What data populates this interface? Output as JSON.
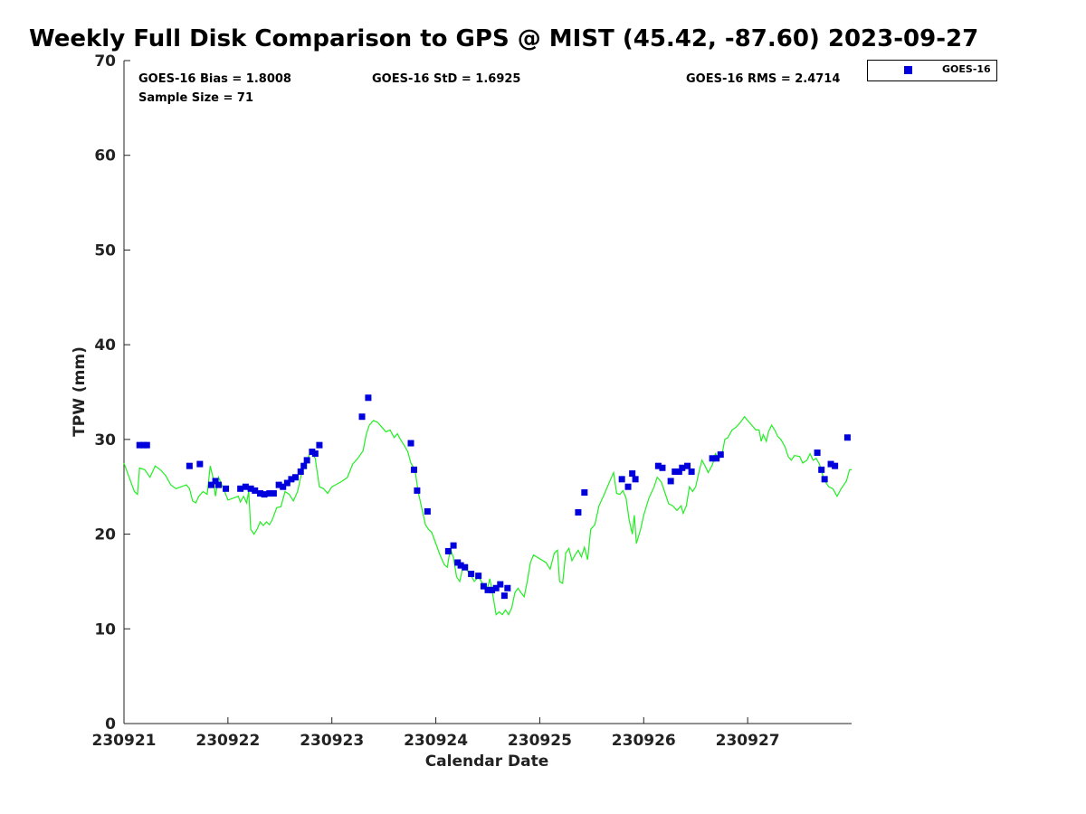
{
  "chart_data": {
    "type": "scatter",
    "title": "Weekly Full Disk Comparison to GPS @ MIST (45.42, -87.60) 2023-09-27",
    "xlabel": "Calendar Date",
    "ylabel": "TPW (mm)",
    "xlim": [
      0,
      7
    ],
    "ylim": [
      0,
      70
    ],
    "x_ticks": [
      0,
      1,
      2,
      3,
      4,
      5,
      6
    ],
    "x_tick_labels": [
      "230921",
      "230922",
      "230923",
      "230924",
      "230925",
      "230926",
      "230927"
    ],
    "y_ticks": [
      0,
      10,
      20,
      30,
      40,
      50,
      60,
      70
    ],
    "y_tick_labels": [
      "0",
      "10",
      "20",
      "30",
      "40",
      "50",
      "60",
      "70"
    ],
    "grid": false,
    "legend_position": "top-right outside plot",
    "stats": {
      "bias": "GOES-16 Bias = 1.8008",
      "std": "GOES-16 StD = 1.6925",
      "rms": "GOES-16 RMS = 2.4714",
      "sample": "Sample Size = 71"
    },
    "series": [
      {
        "name": "GOES-16",
        "kind": "scatter",
        "color": "#0000dd",
        "points": [
          [
            0.15,
            29.4
          ],
          [
            0.19,
            29.4
          ],
          [
            0.22,
            29.4
          ],
          [
            0.63,
            27.2
          ],
          [
            0.73,
            27.4
          ],
          [
            0.84,
            25.2
          ],
          [
            0.88,
            25.6
          ],
          [
            0.91,
            25.2
          ],
          [
            0.98,
            24.8
          ],
          [
            1.12,
            24.8
          ],
          [
            1.17,
            25.0
          ],
          [
            1.22,
            24.8
          ],
          [
            1.26,
            24.6
          ],
          [
            1.31,
            24.3
          ],
          [
            1.35,
            24.2
          ],
          [
            1.4,
            24.3
          ],
          [
            1.44,
            24.3
          ],
          [
            1.49,
            25.2
          ],
          [
            1.53,
            25.0
          ],
          [
            1.57,
            25.4
          ],
          [
            1.61,
            25.8
          ],
          [
            1.65,
            26.0
          ],
          [
            1.7,
            26.6
          ],
          [
            1.73,
            27.2
          ],
          [
            1.76,
            27.8
          ],
          [
            1.81,
            28.7
          ],
          [
            1.84,
            28.5
          ],
          [
            1.88,
            29.4
          ],
          [
            2.29,
            32.4
          ],
          [
            2.35,
            34.4
          ],
          [
            2.76,
            29.6
          ],
          [
            2.79,
            26.8
          ],
          [
            2.82,
            24.6
          ],
          [
            2.92,
            22.4
          ],
          [
            3.12,
            18.2
          ],
          [
            3.17,
            18.8
          ],
          [
            3.21,
            17.0
          ],
          [
            3.24,
            16.7
          ],
          [
            3.28,
            16.5
          ],
          [
            3.34,
            15.8
          ],
          [
            3.41,
            15.6
          ],
          [
            3.46,
            14.5
          ],
          [
            3.5,
            14.1
          ],
          [
            3.54,
            14.1
          ],
          [
            3.58,
            14.3
          ],
          [
            3.62,
            14.7
          ],
          [
            3.66,
            13.5
          ],
          [
            3.69,
            14.3
          ],
          [
            4.37,
            22.3
          ],
          [
            4.43,
            24.4
          ],
          [
            4.79,
            25.8
          ],
          [
            4.85,
            25.0
          ],
          [
            4.89,
            26.4
          ],
          [
            4.92,
            25.8
          ],
          [
            5.14,
            27.2
          ],
          [
            5.18,
            27.0
          ],
          [
            5.26,
            25.6
          ],
          [
            5.3,
            26.6
          ],
          [
            5.34,
            26.6
          ],
          [
            5.37,
            27.0
          ],
          [
            5.42,
            27.2
          ],
          [
            5.46,
            26.6
          ],
          [
            5.66,
            28.0
          ],
          [
            5.7,
            28.0
          ],
          [
            5.74,
            28.4
          ],
          [
            6.67,
            28.6
          ],
          [
            6.71,
            26.8
          ],
          [
            6.74,
            25.8
          ],
          [
            6.8,
            27.4
          ],
          [
            6.84,
            27.2
          ],
          [
            6.96,
            30.2
          ]
        ]
      },
      {
        "name": "",
        "kind": "line",
        "color": "#22ee22",
        "points": [
          [
            0.0,
            27.5
          ],
          [
            0.05,
            26.0
          ],
          [
            0.1,
            24.5
          ],
          [
            0.13,
            24.2
          ],
          [
            0.15,
            27.0
          ],
          [
            0.2,
            26.8
          ],
          [
            0.25,
            26.0
          ],
          [
            0.3,
            27.2
          ],
          [
            0.35,
            26.8
          ],
          [
            0.4,
            26.2
          ],
          [
            0.45,
            25.2
          ],
          [
            0.5,
            24.8
          ],
          [
            0.55,
            25.0
          ],
          [
            0.6,
            25.2
          ],
          [
            0.63,
            24.8
          ],
          [
            0.66,
            23.5
          ],
          [
            0.69,
            23.3
          ],
          [
            0.72,
            24.0
          ],
          [
            0.76,
            24.5
          ],
          [
            0.8,
            24.2
          ],
          [
            0.83,
            27.2
          ],
          [
            0.86,
            25.8
          ],
          [
            0.88,
            24.0
          ],
          [
            0.91,
            26.0
          ],
          [
            0.95,
            25.0
          ],
          [
            1.0,
            23.6
          ],
          [
            1.05,
            23.8
          ],
          [
            1.1,
            24.0
          ],
          [
            1.12,
            23.4
          ],
          [
            1.15,
            24.0
          ],
          [
            1.18,
            23.3
          ],
          [
            1.2,
            24.5
          ],
          [
            1.22,
            20.5
          ],
          [
            1.25,
            20.0
          ],
          [
            1.28,
            20.5
          ],
          [
            1.31,
            21.3
          ],
          [
            1.34,
            20.9
          ],
          [
            1.37,
            21.3
          ],
          [
            1.4,
            21.0
          ],
          [
            1.43,
            21.6
          ],
          [
            1.47,
            22.8
          ],
          [
            1.51,
            22.9
          ],
          [
            1.55,
            24.5
          ],
          [
            1.59,
            24.2
          ],
          [
            1.63,
            23.5
          ],
          [
            1.67,
            24.5
          ],
          [
            1.71,
            26.5
          ],
          [
            1.75,
            27.5
          ],
          [
            1.8,
            28.8
          ],
          [
            1.84,
            28.0
          ],
          [
            1.88,
            25.0
          ],
          [
            1.92,
            24.8
          ],
          [
            1.96,
            24.3
          ],
          [
            2.0,
            25.0
          ],
          [
            2.05,
            25.3
          ],
          [
            2.1,
            25.6
          ],
          [
            2.15,
            26.0
          ],
          [
            2.2,
            27.4
          ],
          [
            2.25,
            28.0
          ],
          [
            2.3,
            28.8
          ],
          [
            2.33,
            30.5
          ],
          [
            2.36,
            31.5
          ],
          [
            2.4,
            32.0
          ],
          [
            2.44,
            31.8
          ],
          [
            2.48,
            31.3
          ],
          [
            2.52,
            30.8
          ],
          [
            2.56,
            31.0
          ],
          [
            2.6,
            30.2
          ],
          [
            2.63,
            30.6
          ],
          [
            2.66,
            30.0
          ],
          [
            2.7,
            29.3
          ],
          [
            2.73,
            28.7
          ],
          [
            2.76,
            27.5
          ],
          [
            2.8,
            26.8
          ],
          [
            2.83,
            24.5
          ],
          [
            2.87,
            22.5
          ],
          [
            2.9,
            21.0
          ],
          [
            2.93,
            20.5
          ],
          [
            2.96,
            20.2
          ],
          [
            3.0,
            19.0
          ],
          [
            3.04,
            17.8
          ],
          [
            3.08,
            16.8
          ],
          [
            3.11,
            16.5
          ],
          [
            3.14,
            18.5
          ],
          [
            3.17,
            17.5
          ],
          [
            3.2,
            15.5
          ],
          [
            3.23,
            15.0
          ],
          [
            3.26,
            16.5
          ],
          [
            3.29,
            16.3
          ],
          [
            3.33,
            15.8
          ],
          [
            3.37,
            15.0
          ],
          [
            3.41,
            15.5
          ],
          [
            3.45,
            14.8
          ],
          [
            3.49,
            14.0
          ],
          [
            3.52,
            15.3
          ],
          [
            3.55,
            13.5
          ],
          [
            3.58,
            11.5
          ],
          [
            3.61,
            11.8
          ],
          [
            3.64,
            11.5
          ],
          [
            3.67,
            12.0
          ],
          [
            3.7,
            11.5
          ],
          [
            3.73,
            12.2
          ],
          [
            3.76,
            13.8
          ],
          [
            3.79,
            14.3
          ],
          [
            3.82,
            13.8
          ],
          [
            3.85,
            13.4
          ],
          [
            3.88,
            15.0
          ],
          [
            3.91,
            17.0
          ],
          [
            3.94,
            17.8
          ],
          [
            4.0,
            17.4
          ],
          [
            4.06,
            17.0
          ],
          [
            4.1,
            16.3
          ],
          [
            4.14,
            18.0
          ],
          [
            4.17,
            18.3
          ],
          [
            4.19,
            15.0
          ],
          [
            4.22,
            14.8
          ],
          [
            4.25,
            18.0
          ],
          [
            4.28,
            18.5
          ],
          [
            4.31,
            17.2
          ],
          [
            4.34,
            17.8
          ],
          [
            4.37,
            18.3
          ],
          [
            4.4,
            17.6
          ],
          [
            4.43,
            18.6
          ],
          [
            4.46,
            17.3
          ],
          [
            4.49,
            20.5
          ],
          [
            4.53,
            21.0
          ],
          [
            4.57,
            23.0
          ],
          [
            4.62,
            24.2
          ],
          [
            4.67,
            25.5
          ],
          [
            4.71,
            26.5
          ],
          [
            4.74,
            24.3
          ],
          [
            4.77,
            24.2
          ],
          [
            4.8,
            24.6
          ],
          [
            4.83,
            23.8
          ],
          [
            4.86,
            21.5
          ],
          [
            4.89,
            20.0
          ],
          [
            4.91,
            22.0
          ],
          [
            4.93,
            19.0
          ],
          [
            4.97,
            20.5
          ],
          [
            5.0,
            22.0
          ],
          [
            5.05,
            23.8
          ],
          [
            5.1,
            25.0
          ],
          [
            5.13,
            26.0
          ],
          [
            5.17,
            25.5
          ],
          [
            5.2,
            24.5
          ],
          [
            5.24,
            23.2
          ],
          [
            5.28,
            23.0
          ],
          [
            5.32,
            22.5
          ],
          [
            5.36,
            23.0
          ],
          [
            5.38,
            22.2
          ],
          [
            5.41,
            23.0
          ],
          [
            5.44,
            25.0
          ],
          [
            5.47,
            24.5
          ],
          [
            5.5,
            25.0
          ],
          [
            5.53,
            26.5
          ],
          [
            5.56,
            27.8
          ],
          [
            5.59,
            27.2
          ],
          [
            5.62,
            26.5
          ],
          [
            5.66,
            27.3
          ],
          [
            5.69,
            28.5
          ],
          [
            5.72,
            28.0
          ],
          [
            5.75,
            28.2
          ],
          [
            5.78,
            30.0
          ],
          [
            5.81,
            30.2
          ],
          [
            5.85,
            31.0
          ],
          [
            5.89,
            31.3
          ],
          [
            5.93,
            31.8
          ],
          [
            5.97,
            32.4
          ],
          [
            6.0,
            32.0
          ],
          [
            6.04,
            31.5
          ],
          [
            6.08,
            31.0
          ],
          [
            6.11,
            31.0
          ],
          [
            6.13,
            29.8
          ],
          [
            6.15,
            30.5
          ],
          [
            6.18,
            29.8
          ],
          [
            6.2,
            30.8
          ],
          [
            6.23,
            31.5
          ],
          [
            6.26,
            31.0
          ],
          [
            6.29,
            30.3
          ],
          [
            6.32,
            30.0
          ],
          [
            6.36,
            29.2
          ],
          [
            6.39,
            28.2
          ],
          [
            6.42,
            27.8
          ],
          [
            6.45,
            28.3
          ],
          [
            6.5,
            28.2
          ],
          [
            6.53,
            27.5
          ],
          [
            6.57,
            27.8
          ],
          [
            6.6,
            28.5
          ],
          [
            6.63,
            27.8
          ],
          [
            6.66,
            28.0
          ],
          [
            6.69,
            27.4
          ],
          [
            6.72,
            26.3
          ],
          [
            6.75,
            25.5
          ],
          [
            6.78,
            25.0
          ],
          [
            6.82,
            24.8
          ],
          [
            6.86,
            24.0
          ],
          [
            6.9,
            24.8
          ],
          [
            6.95,
            25.6
          ],
          [
            6.98,
            26.8
          ],
          [
            7.0,
            26.8
          ]
        ]
      }
    ]
  }
}
